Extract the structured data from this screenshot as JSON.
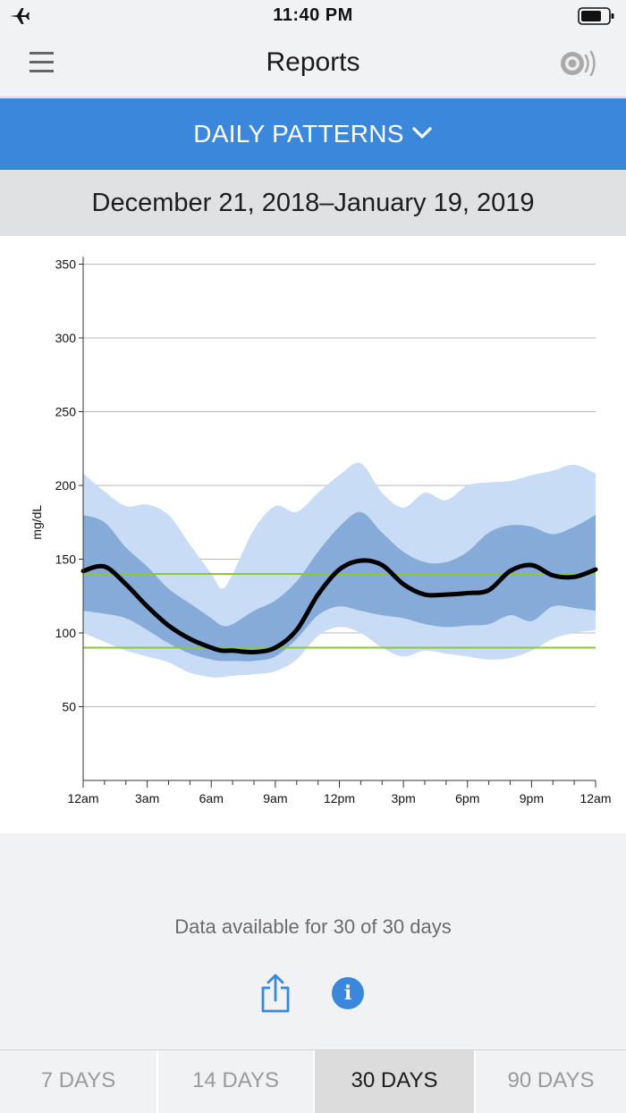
{
  "status_bar": {
    "time": "11:40 PM"
  },
  "nav": {
    "title": "Reports"
  },
  "report_selector": {
    "label": "DAILY PATTERNS"
  },
  "date_range": "December 21, 2018–January 19, 2019",
  "chart_data": {
    "type": "area",
    "title": "Daily Patterns",
    "ylabel": "mg/dL",
    "xlabel": "",
    "ylim": [
      0,
      360
    ],
    "xlim_hours": [
      0,
      24
    ],
    "grid": true,
    "y_ticks": [
      50,
      100,
      150,
      200,
      250,
      300,
      350
    ],
    "x_ticks": [
      {
        "hour": 0,
        "label": "12am"
      },
      {
        "hour": 3,
        "label": "3am"
      },
      {
        "hour": 6,
        "label": "6am"
      },
      {
        "hour": 9,
        "label": "9am"
      },
      {
        "hour": 12,
        "label": "12pm"
      },
      {
        "hour": 15,
        "label": "3pm"
      },
      {
        "hour": 18,
        "label": "6pm"
      },
      {
        "hour": 21,
        "label": "9pm"
      },
      {
        "hour": 24,
        "label": "12am"
      }
    ],
    "target_range": {
      "low": 90,
      "high": 140,
      "color": "#8cc63f"
    },
    "x_hours": [
      0,
      1,
      2,
      3,
      4,
      5,
      6,
      6.5,
      7,
      8,
      9,
      10,
      11,
      12,
      13,
      14,
      15,
      16,
      17,
      18,
      19,
      20,
      21,
      22,
      23,
      24
    ],
    "series": [
      {
        "name": "10th–90th percentile upper",
        "color": "#c8dcf5",
        "values": [
          208,
          196,
          186,
          187,
          180,
          160,
          140,
          130,
          140,
          170,
          186,
          182,
          195,
          207,
          215,
          195,
          185,
          195,
          190,
          200,
          202,
          203,
          207,
          210,
          214,
          208
        ]
      },
      {
        "name": "25th–75th percentile upper",
        "color": "#87abd8",
        "values": [
          180,
          175,
          158,
          145,
          130,
          120,
          110,
          105,
          106,
          115,
          122,
          135,
          155,
          172,
          182,
          168,
          155,
          148,
          148,
          155,
          168,
          173,
          172,
          167,
          172,
          180
        ]
      },
      {
        "name": "Median",
        "color": "#000000",
        "values": [
          142,
          145,
          133,
          118,
          105,
          96,
          90,
          88,
          88,
          87,
          90,
          102,
          126,
          143,
          149,
          146,
          133,
          126,
          126,
          127,
          129,
          142,
          146,
          139,
          138,
          143
        ]
      },
      {
        "name": "25th–75th percentile lower",
        "color": "#87abd8",
        "values": [
          115,
          113,
          110,
          102,
          93,
          86,
          82,
          81,
          81,
          81,
          84,
          96,
          112,
          118,
          115,
          112,
          110,
          106,
          104,
          105,
          106,
          112,
          108,
          118,
          117,
          115
        ]
      },
      {
        "name": "10th–90th percentile lower",
        "color": "#c8dcf5",
        "values": [
          100,
          94,
          88,
          84,
          80,
          73,
          70,
          70,
          71,
          72,
          74,
          82,
          98,
          104,
          100,
          90,
          84,
          88,
          86,
          84,
          82,
          83,
          88,
          96,
          100,
          102
        ]
      }
    ]
  },
  "availability_text": "Data available for 30 of 30 days",
  "actions": {
    "share_icon": "share-icon",
    "info_icon": "info-icon",
    "info_glyph": "i"
  },
  "tabs": [
    {
      "label": "7 DAYS",
      "active": false
    },
    {
      "label": "14 DAYS",
      "active": false
    },
    {
      "label": "30 DAYS",
      "active": true
    },
    {
      "label": "90 DAYS",
      "active": false
    }
  ]
}
